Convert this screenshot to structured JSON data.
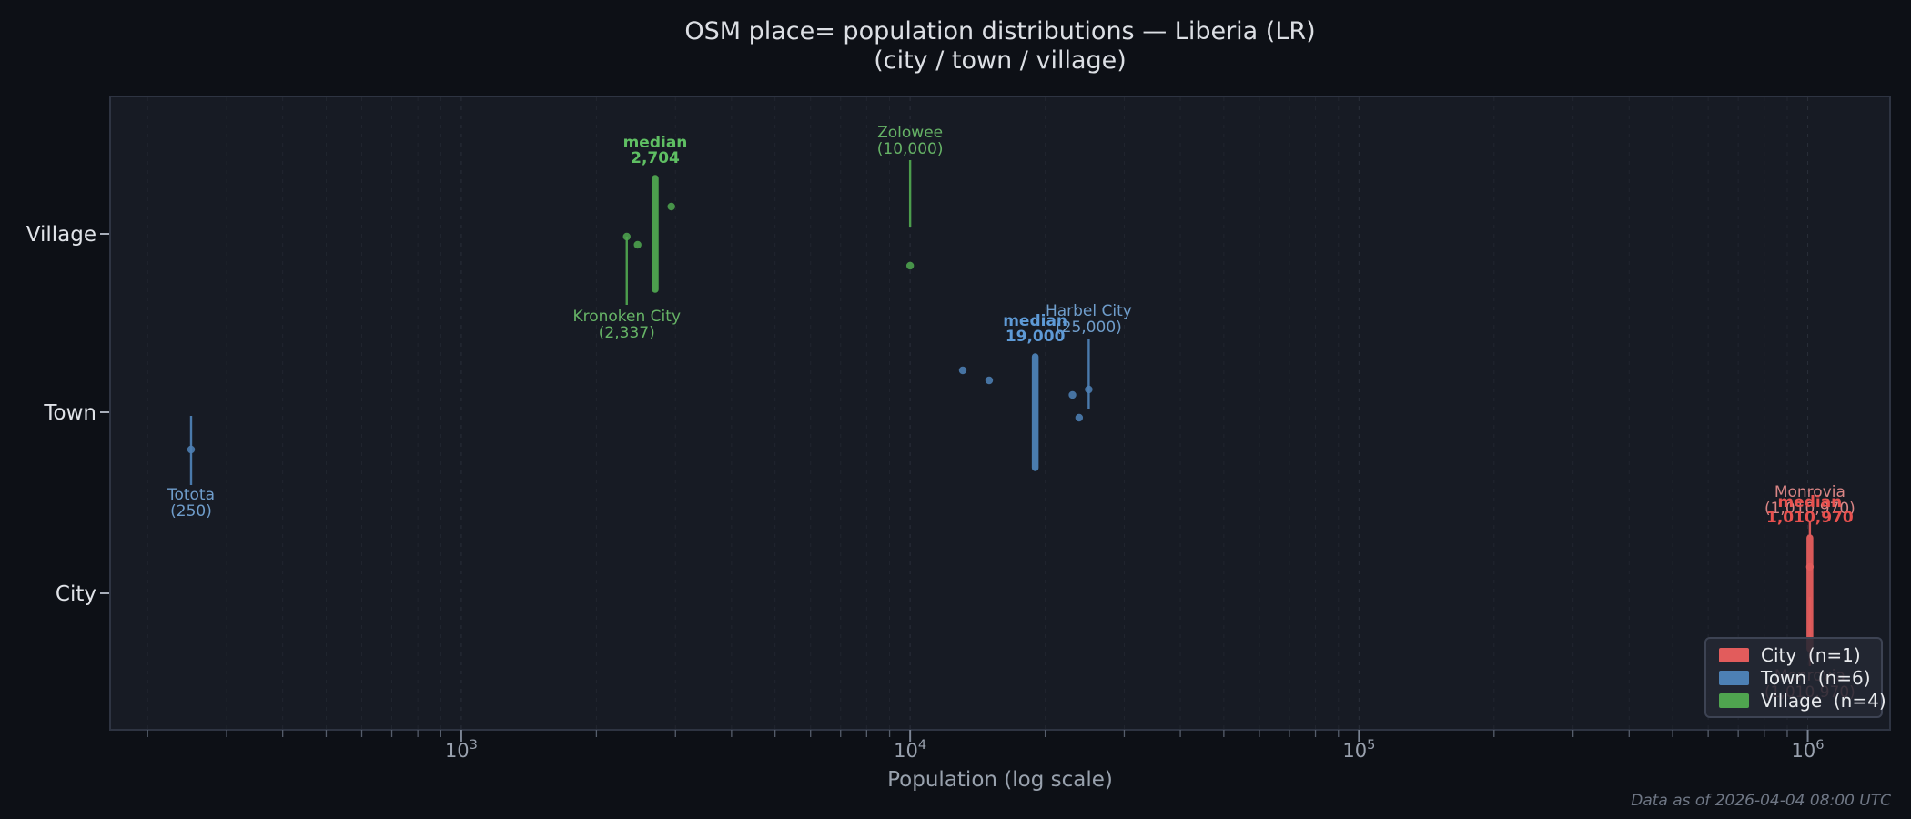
{
  "chart_data": {
    "type": "strip",
    "title_line1": "OSM place= population distributions — Liberia (LR)",
    "title_line2": "(city / town / village)",
    "xlabel": "Population (log scale)",
    "ylabel": "",
    "footer": "Data as of 2026-04-04 08:00 UTC",
    "x_scale": "log10",
    "xlim_log10": [
      2.2175,
      6.1834
    ],
    "grid": {
      "vertical_dashed": true,
      "horizontal": false
    },
    "legend_position": "lower right",
    "median_word": "median",
    "x_ticks": [
      {
        "base": "10",
        "exp": "3",
        "value": 1000
      },
      {
        "base": "10",
        "exp": "4",
        "value": 10000
      },
      {
        "base": "10",
        "exp": "5",
        "value": 100000
      },
      {
        "base": "10",
        "exp": "6",
        "value": 1000000
      }
    ],
    "categories": [
      {
        "key": "village",
        "label": "Village"
      },
      {
        "key": "town",
        "label": "Town"
      },
      {
        "key": "city",
        "label": "City"
      }
    ],
    "series": [
      {
        "key": "city",
        "name": "City",
        "n": 1,
        "legend_label": "City  (n=1)",
        "color": "#e25c5c",
        "label_color": "#d98585",
        "median_color": "#e8514f",
        "median": 1010970,
        "median_text": "1,010,970",
        "points": [
          {
            "pop": 1010970,
            "dy": -29,
            "label": "Monrovia",
            "value_text": "(1,010,970)",
            "annotations": [
              {
                "side": "above",
                "leader_dy": [
                  -80,
                  -62
                ]
              },
              {
                "side": "below",
                "leader_dy": [
                  4,
                  80
                ]
              }
            ]
          }
        ]
      },
      {
        "key": "town",
        "name": "Town",
        "n": 6,
        "legend_label": "Town  (n=6)",
        "color": "#4d80b4",
        "label_color": "#6f9dcb",
        "median_color": "#5e9ad6",
        "median": 19000,
        "median_text": "19,000",
        "points": [
          {
            "pop": 250,
            "dy": 41,
            "label": "Totota",
            "value_text": "(250)",
            "annotations": [
              {
                "side": "below",
                "leader_dy": [
                  4,
                  80
                ]
              }
            ]
          },
          {
            "pop": 13100,
            "dy": -46
          },
          {
            "pop": 15000,
            "dy": -35
          },
          {
            "pop": 23000,
            "dy": -19
          },
          {
            "pop": 23800,
            "dy": 6
          },
          {
            "pop": 25000,
            "dy": -25,
            "label": "Harbel City",
            "value_text": "(25,000)",
            "annotations": [
              {
                "side": "above",
                "leader_dy": [
                  -81,
                  -4
                ]
              }
            ]
          }
        ]
      },
      {
        "key": "village",
        "name": "Village",
        "n": 4,
        "legend_label": "Village  (n=4)",
        "color": "#4fa44f",
        "label_color": "#66b366",
        "median_color": "#5fbf63",
        "median": 2704,
        "median_text": "2,704",
        "points": [
          {
            "pop": 2337,
            "dy": 3,
            "label": "Kronoken City",
            "value_text": "(2,337)",
            "annotations": [
              {
                "side": "below",
                "leader_dy": [
                  3,
                  78
                ]
              }
            ]
          },
          {
            "pop": 2471,
            "dy": 12
          },
          {
            "pop": 2937,
            "dy": -30
          },
          {
            "pop": 10000,
            "dy": 35,
            "label": "Zolowee",
            "value_text": "(10,000)",
            "annotations": [
              {
                "side": "above",
                "leader_dy": [
                  -81,
                  -7
                ]
              }
            ]
          }
        ]
      }
    ]
  }
}
